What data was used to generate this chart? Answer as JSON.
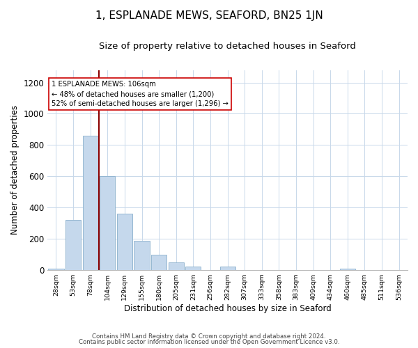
{
  "title": "1, ESPLANADE MEWS, SEAFORD, BN25 1JN",
  "subtitle": "Size of property relative to detached houses in Seaford",
  "xlabel": "Distribution of detached houses by size in Seaford",
  "ylabel": "Number of detached properties",
  "bar_labels": [
    "28sqm",
    "53sqm",
    "78sqm",
    "104sqm",
    "129sqm",
    "155sqm",
    "180sqm",
    "205sqm",
    "231sqm",
    "256sqm",
    "282sqm",
    "307sqm",
    "333sqm",
    "358sqm",
    "383sqm",
    "409sqm",
    "434sqm",
    "460sqm",
    "485sqm",
    "511sqm",
    "536sqm"
  ],
  "bar_values": [
    10,
    320,
    860,
    600,
    360,
    185,
    100,
    47,
    22,
    0,
    20,
    0,
    0,
    0,
    0,
    0,
    0,
    10,
    0,
    0,
    0
  ],
  "bar_color": "#c5d8ec",
  "highlight_line_color": "#8b0000",
  "annotation_title": "1 ESPLANADE MEWS: 106sqm",
  "annotation_line1": "← 48% of detached houses are smaller (1,200)",
  "annotation_line2": "52% of semi-detached houses are larger (1,296) →",
  "annotation_box_color": "#cc0000",
  "ylim": [
    0,
    1280
  ],
  "yticks": [
    0,
    200,
    400,
    600,
    800,
    1000,
    1200
  ],
  "footer1": "Contains HM Land Registry data © Crown copyright and database right 2024.",
  "footer2": "Contains public sector information licensed under the Open Government Licence v3.0.",
  "background_color": "#ffffff",
  "grid_color": "#c8d8ea",
  "title_fontsize": 11,
  "subtitle_fontsize": 9.5,
  "red_line_x": 2.5
}
